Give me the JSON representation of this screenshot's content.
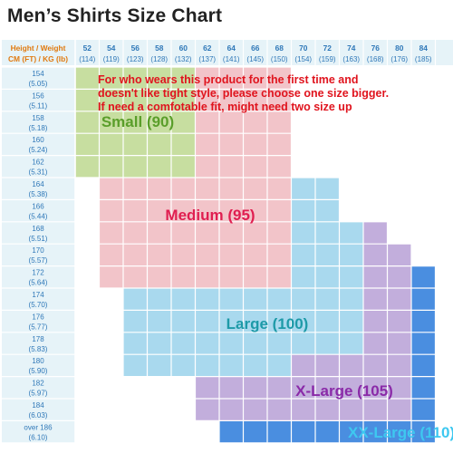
{
  "page": {
    "title": "Men’s Shirts Size Chart",
    "note_lines": [
      "For who wears this product for the first time and",
      "doesn't like tight style, please choose one size bigger.",
      "If need a comfotable fit, might need two size up"
    ]
  },
  "chart_data": {
    "type": "heatmap",
    "title": "Men’s Shirts Size Chart",
    "corner_labels": [
      "Height / Weight",
      "CM (FT) / KG (lb)"
    ],
    "columns": [
      {
        "top": "52",
        "bottom": "(114)"
      },
      {
        "top": "54",
        "bottom": "(119)"
      },
      {
        "top": "56",
        "bottom": "(123)"
      },
      {
        "top": "58",
        "bottom": "(128)"
      },
      {
        "top": "60",
        "bottom": "(132)"
      },
      {
        "top": "62",
        "bottom": "(137)"
      },
      {
        "top": "64",
        "bottom": "(141)"
      },
      {
        "top": "66",
        "bottom": "(145)"
      },
      {
        "top": "68",
        "bottom": "(150)"
      },
      {
        "top": "70",
        "bottom": "(154)"
      },
      {
        "top": "72",
        "bottom": "(159)"
      },
      {
        "top": "74",
        "bottom": "(163)"
      },
      {
        "top": "76",
        "bottom": "(168)"
      },
      {
        "top": "80",
        "bottom": "(176)"
      },
      {
        "top": "84",
        "bottom": "(185)"
      }
    ],
    "rows": [
      {
        "top": "154",
        "bottom": "(5.05)"
      },
      {
        "top": "156",
        "bottom": "(5.11)"
      },
      {
        "top": "158",
        "bottom": "(5.18)"
      },
      {
        "top": "160",
        "bottom": "(5.24)"
      },
      {
        "top": "162",
        "bottom": "(5.31)"
      },
      {
        "top": "164",
        "bottom": "(5.38)"
      },
      {
        "top": "166",
        "bottom": "(5.44)"
      },
      {
        "top": "168",
        "bottom": "(5.51)"
      },
      {
        "top": "170",
        "bottom": "(5.57)"
      },
      {
        "top": "172",
        "bottom": "(5.64)"
      },
      {
        "top": "174",
        "bottom": "(5.70)"
      },
      {
        "top": "176",
        "bottom": "(5.77)"
      },
      {
        "top": "178",
        "bottom": "(5.83)"
      },
      {
        "top": "180",
        "bottom": "(5.90)"
      },
      {
        "top": "182",
        "bottom": "(5.97)"
      },
      {
        "top": "184",
        "bottom": "(6.03)"
      },
      {
        "top": "over 186",
        "bottom": "(6.10)"
      }
    ],
    "sizes": [
      {
        "label": "Small (90)",
        "fill": "#c7dea0",
        "text_color": "#5a9e2a"
      },
      {
        "label": "Medium (95)",
        "fill": "#f2c4c9",
        "text_color": "#e01e50"
      },
      {
        "label": "Large (100)",
        "fill": "#a9d9ee",
        "text_color": "#1e9aa8"
      },
      {
        "label": "X-Large (105)",
        "fill": "#c2aedc",
        "text_color": "#8a2aa8"
      },
      {
        "label": "XX-Large (110)",
        "fill": "#4a8ee0",
        "text_color": "#3ec8f0"
      }
    ],
    "grid": [
      [
        0,
        0,
        0,
        0,
        0,
        1,
        1,
        1,
        1,
        -1,
        -1,
        -1,
        -1,
        -1,
        -1
      ],
      [
        0,
        0,
        0,
        0,
        0,
        1,
        1,
        1,
        1,
        -1,
        -1,
        -1,
        -1,
        -1,
        -1
      ],
      [
        0,
        0,
        0,
        0,
        0,
        1,
        1,
        1,
        1,
        -1,
        -1,
        -1,
        -1,
        -1,
        -1
      ],
      [
        0,
        0,
        0,
        0,
        0,
        1,
        1,
        1,
        1,
        -1,
        -1,
        -1,
        -1,
        -1,
        -1
      ],
      [
        0,
        0,
        0,
        0,
        0,
        1,
        1,
        1,
        1,
        -1,
        -1,
        -1,
        -1,
        -1,
        -1
      ],
      [
        -1,
        1,
        1,
        1,
        1,
        1,
        1,
        1,
        1,
        2,
        2,
        -1,
        -1,
        -1,
        -1
      ],
      [
        -1,
        1,
        1,
        1,
        1,
        1,
        1,
        1,
        1,
        2,
        2,
        -1,
        -1,
        -1,
        -1
      ],
      [
        -1,
        1,
        1,
        1,
        1,
        1,
        1,
        1,
        1,
        2,
        2,
        2,
        3,
        -1,
        -1
      ],
      [
        -1,
        1,
        1,
        1,
        1,
        1,
        1,
        1,
        1,
        2,
        2,
        2,
        3,
        3,
        -1
      ],
      [
        -1,
        1,
        1,
        1,
        1,
        1,
        1,
        1,
        1,
        2,
        2,
        2,
        3,
        3,
        4
      ],
      [
        -1,
        -1,
        2,
        2,
        2,
        2,
        2,
        2,
        2,
        2,
        2,
        2,
        3,
        3,
        4
      ],
      [
        -1,
        -1,
        2,
        2,
        2,
        2,
        2,
        2,
        2,
        2,
        2,
        2,
        3,
        3,
        4
      ],
      [
        -1,
        -1,
        2,
        2,
        2,
        2,
        2,
        2,
        2,
        2,
        2,
        2,
        3,
        3,
        4
      ],
      [
        -1,
        -1,
        2,
        2,
        2,
        2,
        2,
        2,
        2,
        3,
        3,
        3,
        3,
        3,
        4
      ],
      [
        -1,
        -1,
        -1,
        -1,
        -1,
        3,
        3,
        3,
        3,
        3,
        3,
        3,
        3,
        3,
        4
      ],
      [
        -1,
        -1,
        -1,
        -1,
        -1,
        3,
        3,
        3,
        3,
        3,
        3,
        3,
        3,
        3,
        4
      ],
      [
        -1,
        -1,
        -1,
        -1,
        -1,
        -1,
        4,
        4,
        4,
        4,
        4,
        4,
        4,
        4,
        4
      ]
    ],
    "colors": {
      "header_fill": "#e6f3f8",
      "grid_line": "#ffffff",
      "empty_fill": "#ffffff",
      "row_text": "#2f78b8",
      "corner_text": "#e07a10"
    }
  }
}
